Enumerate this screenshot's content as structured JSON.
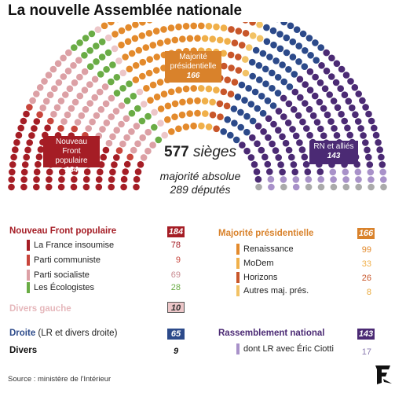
{
  "title": "La nouvelle Assemblée nationale",
  "source": "Source : ministère de l'Intérieur",
  "center": {
    "seats_number": "577",
    "seats_word": "sièges",
    "majority_line1": "majorité absolue",
    "majority_line2": "289 députés"
  },
  "boxes": {
    "nfp": {
      "line1": "Nouveau Front",
      "line2": "populaire",
      "value": "184"
    },
    "maj": {
      "line1": "Majorité",
      "line2": "présidentielle",
      "value": "166"
    },
    "rn": {
      "line1": "RN et alliés",
      "value": "143"
    }
  },
  "legend": {
    "nfp": {
      "label": "Nouveau Front populaire",
      "total": "184",
      "color": "#a51d25"
    },
    "nfp_items": [
      {
        "label": "La France insoumise",
        "value": "78",
        "color": "#a51d25"
      },
      {
        "label": "Parti communiste",
        "value": "9",
        "color": "#c8453c"
      },
      {
        "label": "Parti socialiste",
        "value": "69",
        "color": "#dca0a5"
      },
      {
        "label": "Les Écologistes",
        "value": "28",
        "color": "#6aac45"
      }
    ],
    "dvg": {
      "label": "Divers gauche",
      "total": "10",
      "color": "#ecc6c8"
    },
    "droite": {
      "label": "Droite",
      "label_sub": " (LR et divers droite)",
      "total": "65",
      "color": "#2c4a8a"
    },
    "divers": {
      "label": "Divers",
      "total": "9",
      "color": "#888888"
    },
    "maj": {
      "label": "Majorité présidentielle",
      "total": "166",
      "color": "#d9822b"
    },
    "maj_items": [
      {
        "label": "Renaissance",
        "value": "99",
        "color": "#e38a2c"
      },
      {
        "label": "MoDem",
        "value": "33",
        "color": "#f0b04a"
      },
      {
        "label": "Horizons",
        "value": "26",
        "color": "#c8562a"
      },
      {
        "label": "Autres maj. prés.",
        "value": "8",
        "color": "#f2c265"
      }
    ],
    "rn": {
      "label": "Rassemblement national",
      "total": "143",
      "color": "#4b2a74"
    },
    "rn_items": [
      {
        "label": "dont LR avec Éric Ciotti",
        "value": "17",
        "color": "#a891c9"
      }
    ]
  },
  "chart_data": {
    "type": "parliament-hemicycle",
    "title": "La nouvelle Assemblée nationale",
    "total_seats": 577,
    "absolute_majority": 289,
    "groups": [
      {
        "name": "La France insoumise",
        "bloc": "Nouveau Front populaire",
        "seats": 78,
        "color": "#a51d25"
      },
      {
        "name": "Parti communiste",
        "bloc": "Nouveau Front populaire",
        "seats": 9,
        "color": "#c8453c"
      },
      {
        "name": "Parti socialiste",
        "bloc": "Nouveau Front populaire",
        "seats": 69,
        "color": "#dca0a5"
      },
      {
        "name": "Les Écologistes",
        "bloc": "Nouveau Front populaire",
        "seats": 28,
        "color": "#6aac45"
      },
      {
        "name": "Divers gauche",
        "seats": 10,
        "color": "#ecc6c8"
      },
      {
        "name": "Renaissance",
        "bloc": "Majorité présidentielle",
        "seats": 99,
        "color": "#e38a2c"
      },
      {
        "name": "MoDem",
        "bloc": "Majorité présidentielle",
        "seats": 33,
        "color": "#f0b04a"
      },
      {
        "name": "Horizons",
        "bloc": "Majorité présidentielle",
        "seats": 26,
        "color": "#c8562a"
      },
      {
        "name": "Autres maj. prés.",
        "bloc": "Majorité présidentielle",
        "seats": 8,
        "color": "#f2c265"
      },
      {
        "name": "Droite (LR et divers droite)",
        "seats": 65,
        "color": "#2c4a8a"
      },
      {
        "name": "Rassemblement national",
        "seats": 126,
        "color": "#4b2a74"
      },
      {
        "name": "dont LR avec Éric Ciotti",
        "bloc": "RN et alliés",
        "seats": 17,
        "color": "#a891c9"
      },
      {
        "name": "Divers",
        "seats": 9,
        "color": "#aaaaaa"
      }
    ],
    "blocs": [
      {
        "name": "Nouveau Front populaire",
        "seats": 184
      },
      {
        "name": "Majorité présidentielle",
        "seats": 166
      },
      {
        "name": "RN et alliés",
        "seats": 143
      }
    ]
  }
}
